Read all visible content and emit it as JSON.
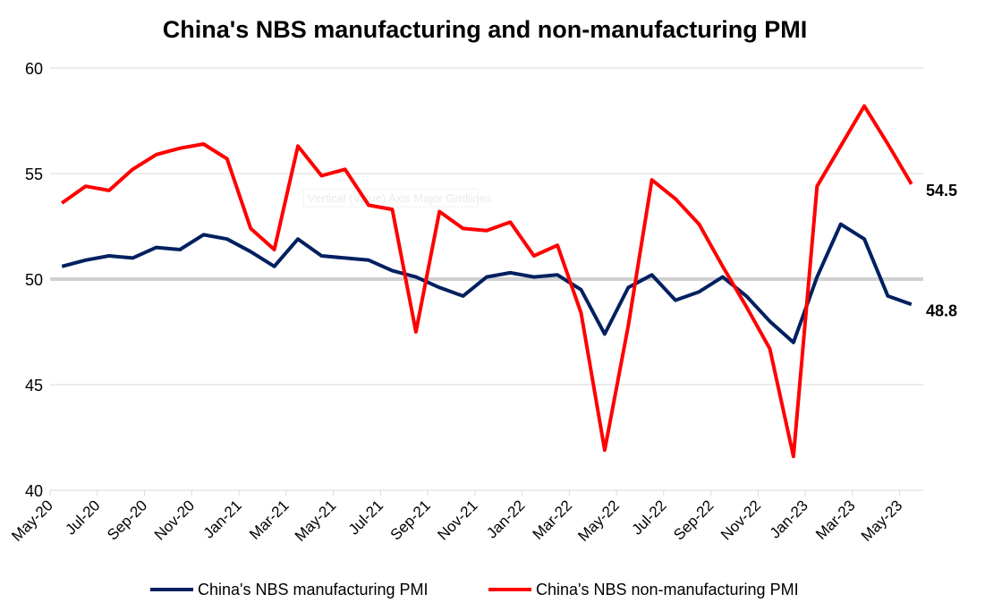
{
  "chart_data": {
    "type": "line",
    "title": "China's NBS manufacturing and non-manufacturing PMI",
    "xlabel": "",
    "ylabel": "",
    "ylim": [
      40,
      60
    ],
    "yticks": [
      40,
      45,
      50,
      55,
      60
    ],
    "grid": true,
    "legend_position": "bottom",
    "categories": [
      "May-20",
      "Jun-20",
      "Jul-20",
      "Aug-20",
      "Sep-20",
      "Oct-20",
      "Nov-20",
      "Dec-20",
      "Jan-21",
      "Feb-21",
      "Mar-21",
      "Apr-21",
      "May-21",
      "Jun-21",
      "Jul-21",
      "Aug-21",
      "Sep-21",
      "Oct-21",
      "Nov-21",
      "Dec-21",
      "Jan-22",
      "Feb-22",
      "Mar-22",
      "Apr-22",
      "May-22",
      "Jun-22",
      "Jul-22",
      "Aug-22",
      "Sep-22",
      "Oct-22",
      "Nov-22",
      "Dec-22",
      "Jan-23",
      "Feb-23",
      "Mar-23",
      "Apr-23",
      "May-23"
    ],
    "series": [
      {
        "name": "China's NBS manufacturing PMI",
        "color": "#002060",
        "values": [
          50.6,
          50.9,
          51.1,
          51.0,
          51.5,
          51.4,
          52.1,
          51.9,
          51.3,
          50.6,
          51.9,
          51.1,
          51.0,
          50.9,
          50.4,
          50.1,
          49.6,
          49.2,
          50.1,
          50.3,
          50.1,
          50.2,
          49.5,
          47.4,
          49.6,
          50.2,
          49.0,
          49.4,
          50.1,
          49.2,
          48.0,
          47.0,
          50.1,
          52.6,
          51.9,
          49.2,
          48.8
        ],
        "end_label": "48.8"
      },
      {
        "name": "China's NBS non-manufacturing PMI",
        "color": "#FF0000",
        "values": [
          53.6,
          54.4,
          54.2,
          55.2,
          55.9,
          56.2,
          56.4,
          55.7,
          52.4,
          51.4,
          56.3,
          54.9,
          55.2,
          53.5,
          53.3,
          47.5,
          53.2,
          52.4,
          52.3,
          52.7,
          51.1,
          51.6,
          48.4,
          41.9,
          47.8,
          54.7,
          53.8,
          52.6,
          50.6,
          48.7,
          46.7,
          41.6,
          54.4,
          56.3,
          58.2,
          56.4,
          54.5
        ],
        "end_label": "54.5"
      }
    ],
    "tooltip": "Vertical (Value) Axis Major Gridlines"
  }
}
